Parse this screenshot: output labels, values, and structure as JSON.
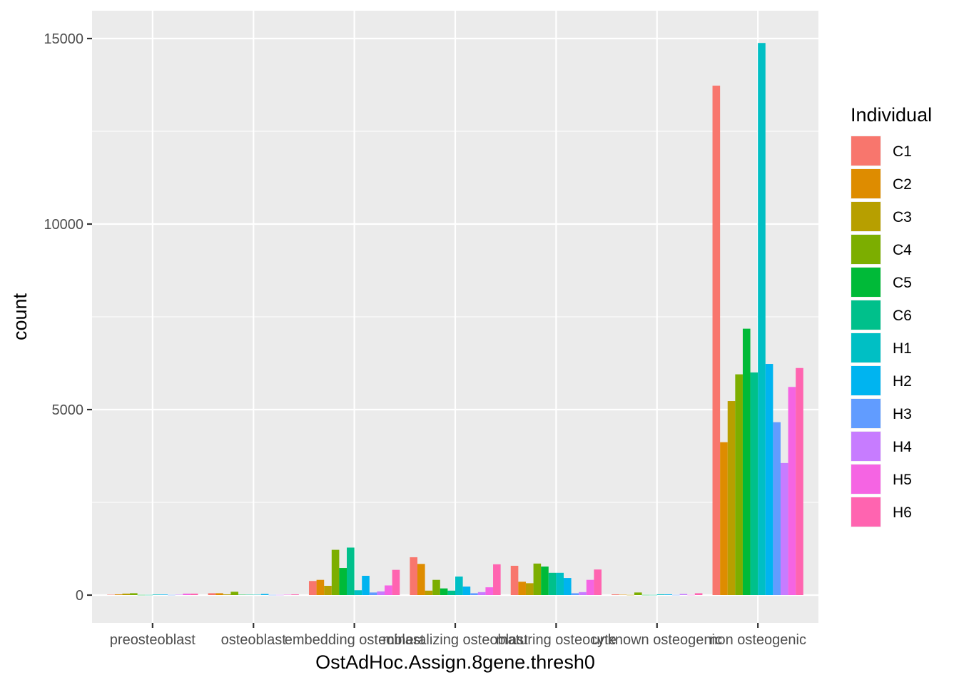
{
  "chart_data": {
    "type": "bar",
    "xlabel": "OstAdHoc.Assign.8gene.thresh0",
    "ylabel": "count",
    "ylim": [
      -750,
      15750
    ],
    "yticks": [
      0,
      5000,
      10000,
      15000
    ],
    "grid": true,
    "legend": {
      "title": "Individual",
      "position": "right"
    },
    "categories": [
      "preosteoblast",
      "osteoblast",
      "embedding osteoblast",
      "mineralizing osteoblast",
      "maturing osteocyte",
      "unknown osteogenic",
      "non osteogenic"
    ],
    "series": [
      {
        "name": "C1",
        "color": "#F8766D",
        "values": [
          10,
          50,
          380,
          1020,
          790,
          20,
          13730
        ]
      },
      {
        "name": "C2",
        "color": "#DE8C00",
        "values": [
          20,
          50,
          410,
          840,
          360,
          10,
          4120
        ]
      },
      {
        "name": "C3",
        "color": "#B79F00",
        "values": [
          40,
          20,
          250,
          120,
          320,
          5,
          5230
        ]
      },
      {
        "name": "C4",
        "color": "#7CAE00",
        "values": [
          50,
          90,
          1220,
          410,
          850,
          70,
          5950
        ]
      },
      {
        "name": "C5",
        "color": "#00BA38",
        "values": [
          5,
          10,
          730,
          180,
          770,
          5,
          7180
        ]
      },
      {
        "name": "C6",
        "color": "#00C08B",
        "values": [
          5,
          10,
          1280,
          120,
          600,
          5,
          6000
        ]
      },
      {
        "name": "H1",
        "color": "#00BFC4",
        "values": [
          15,
          10,
          130,
          500,
          600,
          20,
          14880
        ]
      },
      {
        "name": "H2",
        "color": "#00B4F0",
        "values": [
          15,
          30,
          520,
          230,
          460,
          20,
          6230
        ]
      },
      {
        "name": "H3",
        "color": "#619CFF",
        "values": [
          5,
          5,
          70,
          50,
          50,
          5,
          4660
        ]
      },
      {
        "name": "H4",
        "color": "#C77CFF",
        "values": [
          10,
          5,
          100,
          80,
          80,
          30,
          3560
        ]
      },
      {
        "name": "H5",
        "color": "#F564E3",
        "values": [
          40,
          10,
          260,
          210,
          410,
          5,
          5610
        ]
      },
      {
        "name": "H6",
        "color": "#FF64B0",
        "values": [
          40,
          20,
          680,
          830,
          690,
          50,
          6120
        ]
      }
    ]
  }
}
